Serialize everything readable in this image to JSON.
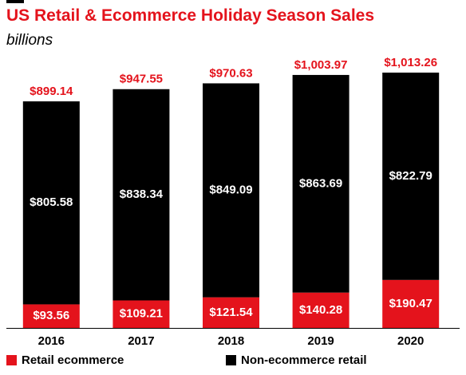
{
  "header": {
    "title": "US Retail & Ecommerce Holiday Season Sales",
    "subtitle": "billions"
  },
  "colors": {
    "ecommerce": "#e4131c",
    "non_ecommerce": "#000000",
    "total_label": "#e4131c"
  },
  "legend": {
    "items": [
      {
        "label": "Retail ecommerce"
      },
      {
        "label": "Non-ecommerce retail"
      }
    ]
  },
  "chart_data": {
    "type": "bar",
    "stacked": true,
    "categories": [
      "2016",
      "2017",
      "2018",
      "2019",
      "2020"
    ],
    "series": [
      {
        "name": "Retail ecommerce",
        "values": [
          93.56,
          109.21,
          121.54,
          140.28,
          190.47
        ],
        "labels": [
          "$93.56",
          "$109.21",
          "$121.54",
          "$140.28",
          "$190.47"
        ]
      },
      {
        "name": "Non-ecommerce retail",
        "values": [
          805.58,
          838.34,
          849.09,
          863.69,
          822.79
        ],
        "labels": [
          "$805.58",
          "$838.34",
          "$849.09",
          "$863.69",
          "$822.79"
        ]
      }
    ],
    "totals": [
      899.14,
      947.55,
      970.63,
      1003.97,
      1013.26
    ],
    "total_labels": [
      "$899.14",
      "$947.55",
      "$970.63",
      "$1,003.97",
      "$1,013.26"
    ],
    "title": "US Retail & Ecommerce Holiday Season Sales",
    "ylabel": "",
    "xlabel": "",
    "ylim": [
      0,
      1013.26
    ],
    "grid": false,
    "legend_position": "bottom"
  }
}
